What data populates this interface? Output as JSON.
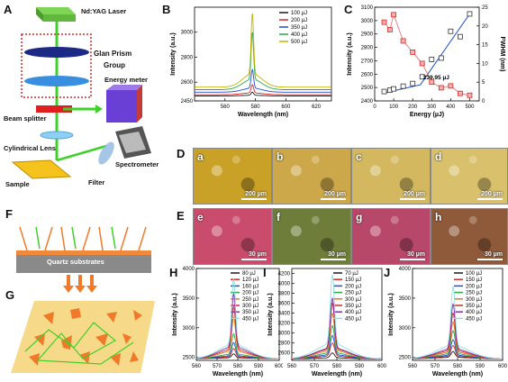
{
  "panel_letters": [
    "A",
    "B",
    "C",
    "D",
    "E",
    "F",
    "G",
    "H",
    "I",
    "J"
  ],
  "setup": {
    "laser": "Nd:YAG Laser",
    "prism_line1": "Glan Prism",
    "prism_line2": "Group",
    "energy_meter": "Energy meter",
    "beam_splitter": "Beam splitter",
    "cyl_lens": "Cylindrical Lens",
    "spectrometer": "Spectrometer",
    "filter": "Filter",
    "sample": "Sample"
  },
  "quartz": "Quartz substrates",
  "micro_D": [
    {
      "letter": "a",
      "scale": "200 µm",
      "color": "#c9a126"
    },
    {
      "letter": "b",
      "scale": "200 µm",
      "color": "#cca84a"
    },
    {
      "letter": "c",
      "scale": "200 µm",
      "color": "#d3b860"
    },
    {
      "letter": "d",
      "scale": "200 µm",
      "color": "#d8c06c"
    }
  ],
  "micro_E": [
    {
      "letter": "e",
      "scale": "30 µm",
      "color": "#c94c6c"
    },
    {
      "letter": "f",
      "scale": "30 µm",
      "color": "#6e7d3a"
    },
    {
      "letter": "g",
      "scale": "30 µm",
      "color": "#b8486a"
    },
    {
      "letter": "h",
      "scale": "30 µm",
      "color": "#8e5a3a"
    }
  ],
  "colors": {
    "c1": "#1a1a1a",
    "c2": "#d62828",
    "c3": "#1f4fcf",
    "c4": "#2aa84a",
    "c5": "#c2b400",
    "c6": "#e87a1e",
    "c7": "#7e2fa8",
    "c8": "#8ee0e0",
    "c9": "#1a4f8a"
  },
  "chart_data": [
    {
      "panel": "B",
      "type": "line",
      "xlabel": "Wavelength (nm)",
      "ylabel": "Intensity (a.u.)",
      "xlim": [
        540,
        630
      ],
      "ylim": [
        2450,
        3200
      ],
      "xticks": [
        560,
        580,
        600,
        620
      ],
      "yticks": [
        2450,
        2600,
        2800,
        3000
      ],
      "peak": 578,
      "series": [
        {
          "name": "100 µJ",
          "peak": 2520,
          "base": 2490,
          "color": "#1a1a1a"
        },
        {
          "name": "200 µJ",
          "peak": 2580,
          "base": 2500,
          "color": "#d62828"
        },
        {
          "name": "350 µJ",
          "peak": 2700,
          "base": 2520,
          "color": "#1f4fcf"
        },
        {
          "name": "400 µJ",
          "peak": 3000,
          "base": 2540,
          "color": "#2aa84a"
        },
        {
          "name": "500 µJ",
          "peak": 3150,
          "base": 2560,
          "color": "#c2b400"
        }
      ]
    },
    {
      "panel": "C",
      "type": "scatter",
      "xlabel": "Energy (µJ)",
      "ylabel": "Intensity (a.u.)",
      "y2label": "FWHM (nm)",
      "xlim": [
        0,
        550
      ],
      "ylim": [
        2400,
        3100
      ],
      "y2lim": [
        0,
        25
      ],
      "xticks": [
        0,
        100,
        200,
        300,
        400,
        500
      ],
      "yticks": [
        2400,
        2500,
        2600,
        2700,
        2800,
        2900,
        3000,
        3100
      ],
      "y2ticks": [
        0,
        5,
        10,
        15,
        20,
        25
      ],
      "annotation": "239.95 µJ",
      "intensity": [
        [
          50,
          2470
        ],
        [
          80,
          2480
        ],
        [
          100,
          2490
        ],
        [
          150,
          2510
        ],
        [
          200,
          2530
        ],
        [
          250,
          2580
        ],
        [
          300,
          2710
        ],
        [
          350,
          2720
        ],
        [
          400,
          2920
        ],
        [
          450,
          2880
        ],
        [
          500,
          3050
        ]
      ],
      "fwhm": [
        [
          50,
          21
        ],
        [
          80,
          19
        ],
        [
          100,
          23
        ],
        [
          150,
          16
        ],
        [
          200,
          13
        ],
        [
          250,
          10
        ],
        [
          300,
          5
        ],
        [
          350,
          3.5
        ],
        [
          400,
          4
        ],
        [
          450,
          2
        ],
        [
          500,
          1.5
        ]
      ],
      "fit1": [
        [
          50,
          2460
        ],
        [
          240,
          2520
        ]
      ],
      "fit2": [
        [
          240,
          2520
        ],
        [
          500,
          3050
        ]
      ]
    },
    {
      "panel": "H",
      "type": "line",
      "xlabel": "Wavelength (nm)",
      "ylabel": "Intensity (a.u.)",
      "xlim": [
        560,
        600
      ],
      "ylim": [
        2450,
        4000
      ],
      "xticks": [
        560,
        570,
        580,
        590,
        600
      ],
      "yticks": [
        2500,
        3000,
        3500,
        4000
      ],
      "peak": 578,
      "base": 2480,
      "series": [
        {
          "name": "80 µJ",
          "peak": 2560,
          "color": "#1a1a1a"
        },
        {
          "name": "120 µJ",
          "peak": 2650,
          "color": "#d62828"
        },
        {
          "name": "160 µJ",
          "peak": 2750,
          "color": "#1f4fcf"
        },
        {
          "name": "200 µJ",
          "peak": 2900,
          "color": "#2aa84a"
        },
        {
          "name": "250 µJ",
          "peak": 3180,
          "color": "#e87a1e"
        },
        {
          "name": "300 µJ",
          "peak": 3350,
          "color": "#d62828"
        },
        {
          "name": "350 µJ",
          "peak": 3570,
          "color": "#7e2fa8"
        },
        {
          "name": "450 µJ",
          "peak": 3820,
          "color": "#8ee0e0"
        }
      ]
    },
    {
      "panel": "I",
      "type": "line",
      "xlabel": "Wavelength (nm)",
      "ylabel": "Intensity (a.u.)",
      "xlim": [
        560,
        600
      ],
      "ylim": [
        2450,
        4300
      ],
      "xticks": [
        560,
        570,
        580,
        590,
        600
      ],
      "yticks": [
        2600,
        2800,
        3000,
        3200,
        3400,
        3600,
        3800,
        4000,
        4200
      ],
      "peak": 578,
      "base": 2480,
      "series": [
        {
          "name": "70 µJ",
          "peak": 2600,
          "color": "#1a1a1a"
        },
        {
          "name": "150 µJ",
          "peak": 2800,
          "color": "#d62828"
        },
        {
          "name": "200 µJ",
          "peak": 2950,
          "color": "#1f4fcf"
        },
        {
          "name": "250 µJ",
          "peak": 3150,
          "color": "#2aa84a"
        },
        {
          "name": "300 µJ",
          "peak": 3400,
          "color": "#e87a1e"
        },
        {
          "name": "350 µJ",
          "peak": 3600,
          "color": "#d62828"
        },
        {
          "name": "400 µJ",
          "peak": 3700,
          "color": "#7e2fa8"
        },
        {
          "name": "450 µJ",
          "peak": 4180,
          "color": "#8ee0e0"
        }
      ]
    },
    {
      "panel": "J",
      "type": "line",
      "xlabel": "Wavelength (nm)",
      "ylabel": "Intensity (a.u.)",
      "xlim": [
        560,
        600
      ],
      "ylim": [
        2450,
        4000
      ],
      "xticks": [
        560,
        570,
        580,
        590,
        600
      ],
      "yticks": [
        2500,
        3000,
        3500,
        4000
      ],
      "peak": 578,
      "base": 2480,
      "series": [
        {
          "name": "100 µJ",
          "peak": 2600,
          "color": "#1a1a1a"
        },
        {
          "name": "150 µJ",
          "peak": 2700,
          "color": "#d62828"
        },
        {
          "name": "200 µJ",
          "peak": 2800,
          "color": "#1f4fcf"
        },
        {
          "name": "250 µJ",
          "peak": 2950,
          "color": "#2aa84a"
        },
        {
          "name": "300 µJ",
          "peak": 3100,
          "color": "#e87a1e"
        },
        {
          "name": "350 µJ",
          "peak": 3250,
          "color": "#d62828"
        },
        {
          "name": "400 µJ",
          "peak": 3400,
          "color": "#7e2fa8"
        },
        {
          "name": "450 µJ",
          "peak": 3700,
          "color": "#8ee0e0"
        }
      ]
    }
  ]
}
